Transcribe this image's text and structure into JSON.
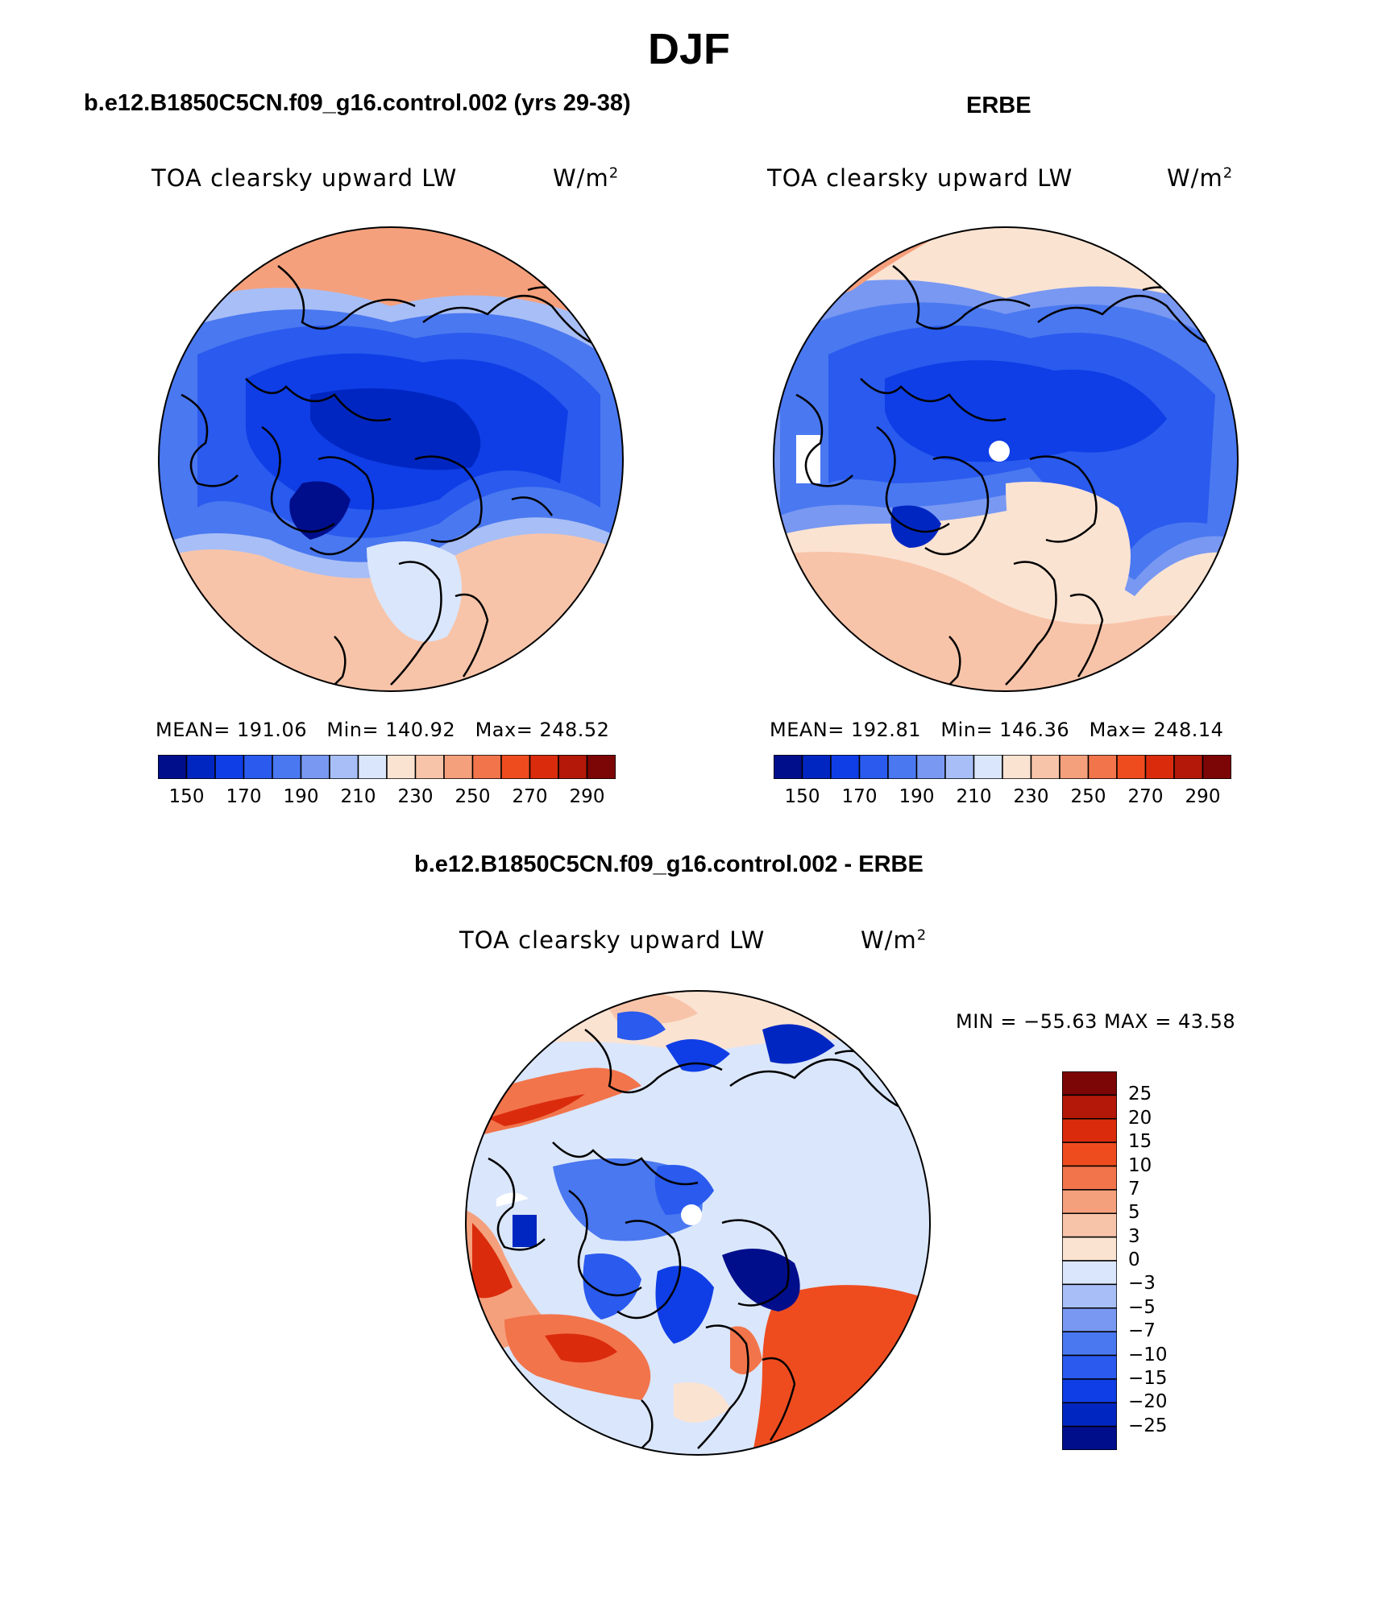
{
  "title": "DJF",
  "panels": [
    {
      "case_title": "b.e12.B1850C5CN.f09_g16.control.002 (yrs 29-38)",
      "variable": "TOA clearsky upward LW",
      "units": "W/m",
      "units_exp": "2",
      "stats": {
        "mean_label": "MEAN=",
        "mean": "191.06",
        "min_label": "Min=",
        "min": "140.92",
        "max_label": "Max=",
        "max": "248.52"
      },
      "colorbar_ticks": [
        "150",
        "170",
        "190",
        "210",
        "230",
        "250",
        "270",
        "290"
      ]
    },
    {
      "case_title": "ERBE",
      "variable": "TOA clearsky upward LW",
      "units": "W/m",
      "units_exp": "2",
      "stats": {
        "mean_label": "MEAN=",
        "mean": "192.81",
        "min_label": "Min=",
        "min": "146.36",
        "max_label": "Max=",
        "max": "248.14"
      },
      "colorbar_ticks": [
        "150",
        "170",
        "190",
        "210",
        "230",
        "250",
        "270",
        "290"
      ]
    }
  ],
  "diff_panel": {
    "case_title": "b.e12.B1850C5CN.f09_g16.control.002 - ERBE",
    "variable": "TOA clearsky upward LW",
    "units": "W/m",
    "units_exp": "2",
    "minmax_text": "MIN = −55.63 MAX =   43.58",
    "colorbar_ticks": [
      "25",
      "20",
      "15",
      "10",
      "7",
      "5",
      "3",
      "0",
      "−3",
      "−5",
      "−7",
      "−10",
      "−15",
      "−20",
      "−25"
    ]
  },
  "colors": {
    "abs_scale": [
      "#000e8c",
      "#0026c2",
      "#0f3ee6",
      "#2a5aee",
      "#4a78f0",
      "#7898f2",
      "#a8bef6",
      "#dae6fb",
      "#fbe3d2",
      "#f8c4a9",
      "#f5a07c",
      "#f2744b",
      "#ee4c1f",
      "#da2c0d",
      "#b31808",
      "#7c0506"
    ],
    "diff_scale": [
      "#7c0506",
      "#b31808",
      "#da2c0d",
      "#ee4c1f",
      "#f2744b",
      "#f5a07c",
      "#f8c4a9",
      "#fbe3d2",
      "#dae6fb",
      "#a8bef6",
      "#7898f2",
      "#4a78f0",
      "#2a5aee",
      "#0f3ee6",
      "#0026c2",
      "#000e8c"
    ]
  }
}
